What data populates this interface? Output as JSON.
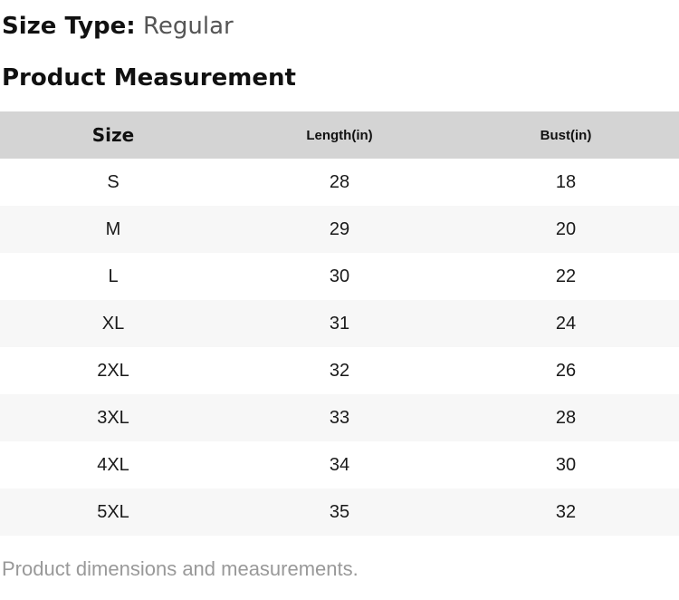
{
  "size_type": {
    "label": "Size Type:",
    "value": "Regular"
  },
  "section_title": "Product Measurement",
  "table": {
    "headers": [
      "Size",
      "Length(in)",
      "Bust(in)"
    ],
    "rows": [
      {
        "size": "S",
        "length": "28",
        "bust": "18"
      },
      {
        "size": "M",
        "length": "29",
        "bust": "20"
      },
      {
        "size": "L",
        "length": "30",
        "bust": "22"
      },
      {
        "size": "XL",
        "length": "31",
        "bust": "24"
      },
      {
        "size": "2XL",
        "length": "32",
        "bust": "26"
      },
      {
        "size": "3XL",
        "length": "33",
        "bust": "28"
      },
      {
        "size": "4XL",
        "length": "34",
        "bust": "30"
      },
      {
        "size": "5XL",
        "length": "35",
        "bust": "32"
      }
    ]
  },
  "footer_note": "Product dimensions and measurements.",
  "colors": {
    "header_bg": "#d4d4d4",
    "alt_row_bg": "#f7f7f7",
    "title_text": "#111111",
    "muted_value_text": "#555555",
    "caption_text": "#999999"
  }
}
